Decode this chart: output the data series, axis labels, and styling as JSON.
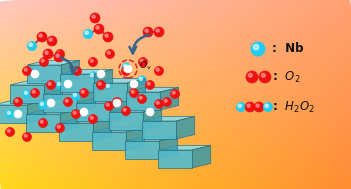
{
  "figsize": [
    3.51,
    1.89
  ],
  "dpi": 100,
  "nb_color": "#22CCEE",
  "nb_edge": "#007799",
  "o_color": "#EE1111",
  "o_highlight": "#FF7777",
  "white_color": "#FFFFFF",
  "white_edge": "#BBBBBB",
  "crystal_top": "#88DDEE",
  "crystal_front": "#55BBCC",
  "crystal_right": "#3399AA",
  "crystal_edge": "#226677",
  "arrow_color": "#336688",
  "ov_color": "#CC2222",
  "bond_color": "#994433",
  "text_color": "#111111"
}
